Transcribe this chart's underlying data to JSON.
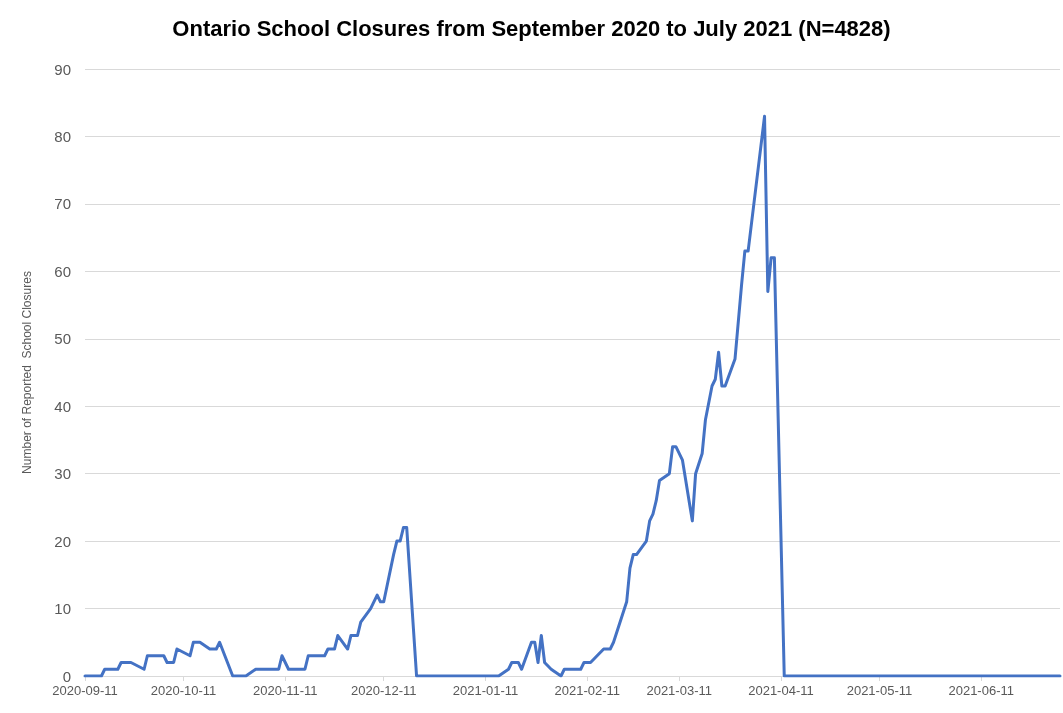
{
  "chart_data": {
    "type": "line",
    "title": "Ontario School Closures from September 2020 to July 2021 (N=4828)",
    "ylabel": "Number of Reported  School Closures",
    "x": [
      "2020-09-11",
      "2020-09-16",
      "2020-09-17",
      "2020-09-21",
      "2020-09-22",
      "2020-09-25",
      "2020-09-29",
      "2020-09-30",
      "2020-10-05",
      "2020-10-06",
      "2020-10-08",
      "2020-10-09",
      "2020-10-13",
      "2020-10-14",
      "2020-10-16",
      "2020-10-19",
      "2020-10-21",
      "2020-10-22",
      "2020-10-26",
      "2020-10-30",
      "2020-11-02",
      "2020-11-09",
      "2020-11-10",
      "2020-11-12",
      "2020-11-17",
      "2020-11-18",
      "2020-11-23",
      "2020-11-24",
      "2020-11-26",
      "2020-11-27",
      "2020-11-30",
      "2020-12-01",
      "2020-12-03",
      "2020-12-04",
      "2020-12-07",
      "2020-12-09",
      "2020-12-10",
      "2020-12-11",
      "2020-12-14",
      "2020-12-15",
      "2020-12-16",
      "2020-12-17",
      "2020-12-18",
      "2020-12-21",
      "2021-01-15",
      "2021-01-18",
      "2021-01-19",
      "2021-01-21",
      "2021-01-22",
      "2021-01-25",
      "2021-01-26",
      "2021-01-27",
      "2021-01-28",
      "2021-01-29",
      "2021-01-31",
      "2021-02-03",
      "2021-02-04",
      "2021-02-09",
      "2021-02-10",
      "2021-02-12",
      "2021-02-16",
      "2021-02-18",
      "2021-02-19",
      "2021-02-23",
      "2021-02-24",
      "2021-02-25",
      "2021-02-26",
      "2021-03-01",
      "2021-03-02",
      "2021-03-03",
      "2021-03-04",
      "2021-03-05",
      "2021-03-08",
      "2021-03-09",
      "2021-03-10",
      "2021-03-12",
      "2021-03-15",
      "2021-03-16",
      "2021-03-18",
      "2021-03-19",
      "2021-03-21",
      "2021-03-22",
      "2021-03-23",
      "2021-03-24",
      "2021-03-25",
      "2021-03-28",
      "2021-03-30",
      "2021-03-31",
      "2021-04-01",
      "2021-04-06",
      "2021-04-07",
      "2021-04-08",
      "2021-04-09",
      "2021-04-12",
      "2021-07-05"
    ],
    "series": [
      {
        "color": "#4472c4",
        "values": [
          0,
          0,
          1,
          1,
          2,
          2,
          1,
          3,
          3,
          2,
          2,
          4,
          3,
          5,
          5,
          4,
          4,
          5,
          0,
          0,
          1,
          1,
          3,
          1,
          1,
          3,
          3,
          4,
          4,
          6,
          4,
          6,
          6,
          8,
          10,
          12,
          11,
          11,
          18,
          20,
          20,
          22,
          22,
          0,
          0,
          1,
          2,
          2,
          1,
          5,
          5,
          2,
          6,
          2,
          1,
          0,
          1,
          1,
          2,
          2,
          4,
          4,
          5,
          11,
          16,
          18,
          18,
          20,
          23,
          24,
          26,
          29,
          30,
          34,
          34,
          32,
          23,
          30,
          33,
          38,
          43,
          44,
          48,
          43,
          43,
          47,
          58,
          63,
          63,
          83,
          57,
          62,
          62,
          0,
          0
        ]
      }
    ],
    "xlim": [
      "2020-09-11",
      "2021-07-05"
    ],
    "xticks": [
      "2020-09-11",
      "2020-10-11",
      "2020-11-11",
      "2020-12-11",
      "2021-01-11",
      "2021-02-11",
      "2021-03-11",
      "2021-04-11",
      "2021-05-11",
      "2021-06-11"
    ],
    "ylim": [
      0,
      90
    ],
    "yticks": [
      0,
      10,
      20,
      30,
      40,
      50,
      60,
      70,
      80,
      90
    ],
    "grid": "y",
    "marker": "none",
    "line_style": "solid"
  }
}
